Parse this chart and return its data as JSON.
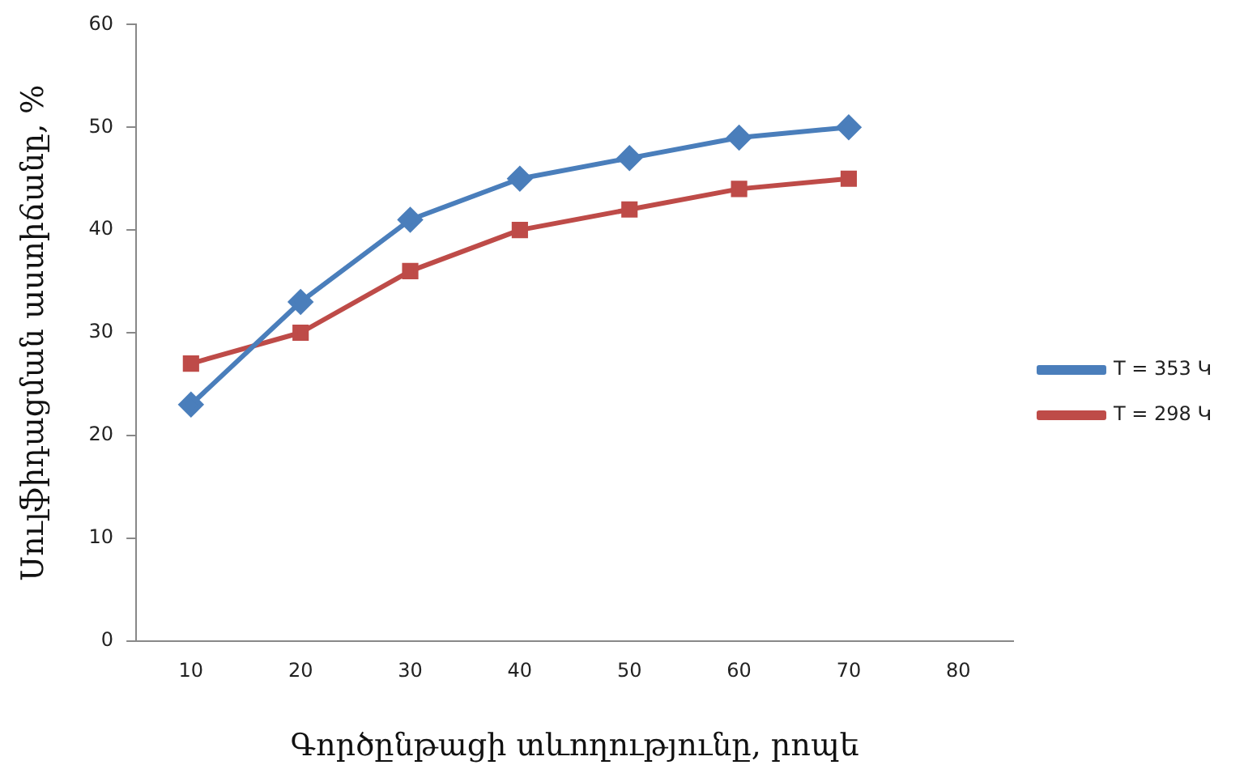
{
  "chart_data": {
    "type": "line",
    "xlabel": "Գործընթացի տևողությունը, րոպե",
    "ylabel": "Սուլֆիդացման աստիճանը, %",
    "categories": [
      "10",
      "20",
      "30",
      "40",
      "50",
      "60",
      "70",
      "80"
    ],
    "series": [
      {
        "name": "T = 353 Կ",
        "color": "#4a7ebb",
        "marker": "diamond",
        "values": [
          23,
          33,
          41,
          45,
          47,
          49,
          50,
          null
        ]
      },
      {
        "name": "T = 298 Կ",
        "color": "#be4b48",
        "marker": "square",
        "values": [
          27,
          30,
          36,
          40,
          42,
          44,
          45,
          null
        ]
      }
    ],
    "ylim": [
      0,
      60
    ],
    "yticks": [
      0,
      10,
      20,
      30,
      40,
      50,
      60
    ],
    "grid": false,
    "legend": "right",
    "line_style": "solid"
  }
}
